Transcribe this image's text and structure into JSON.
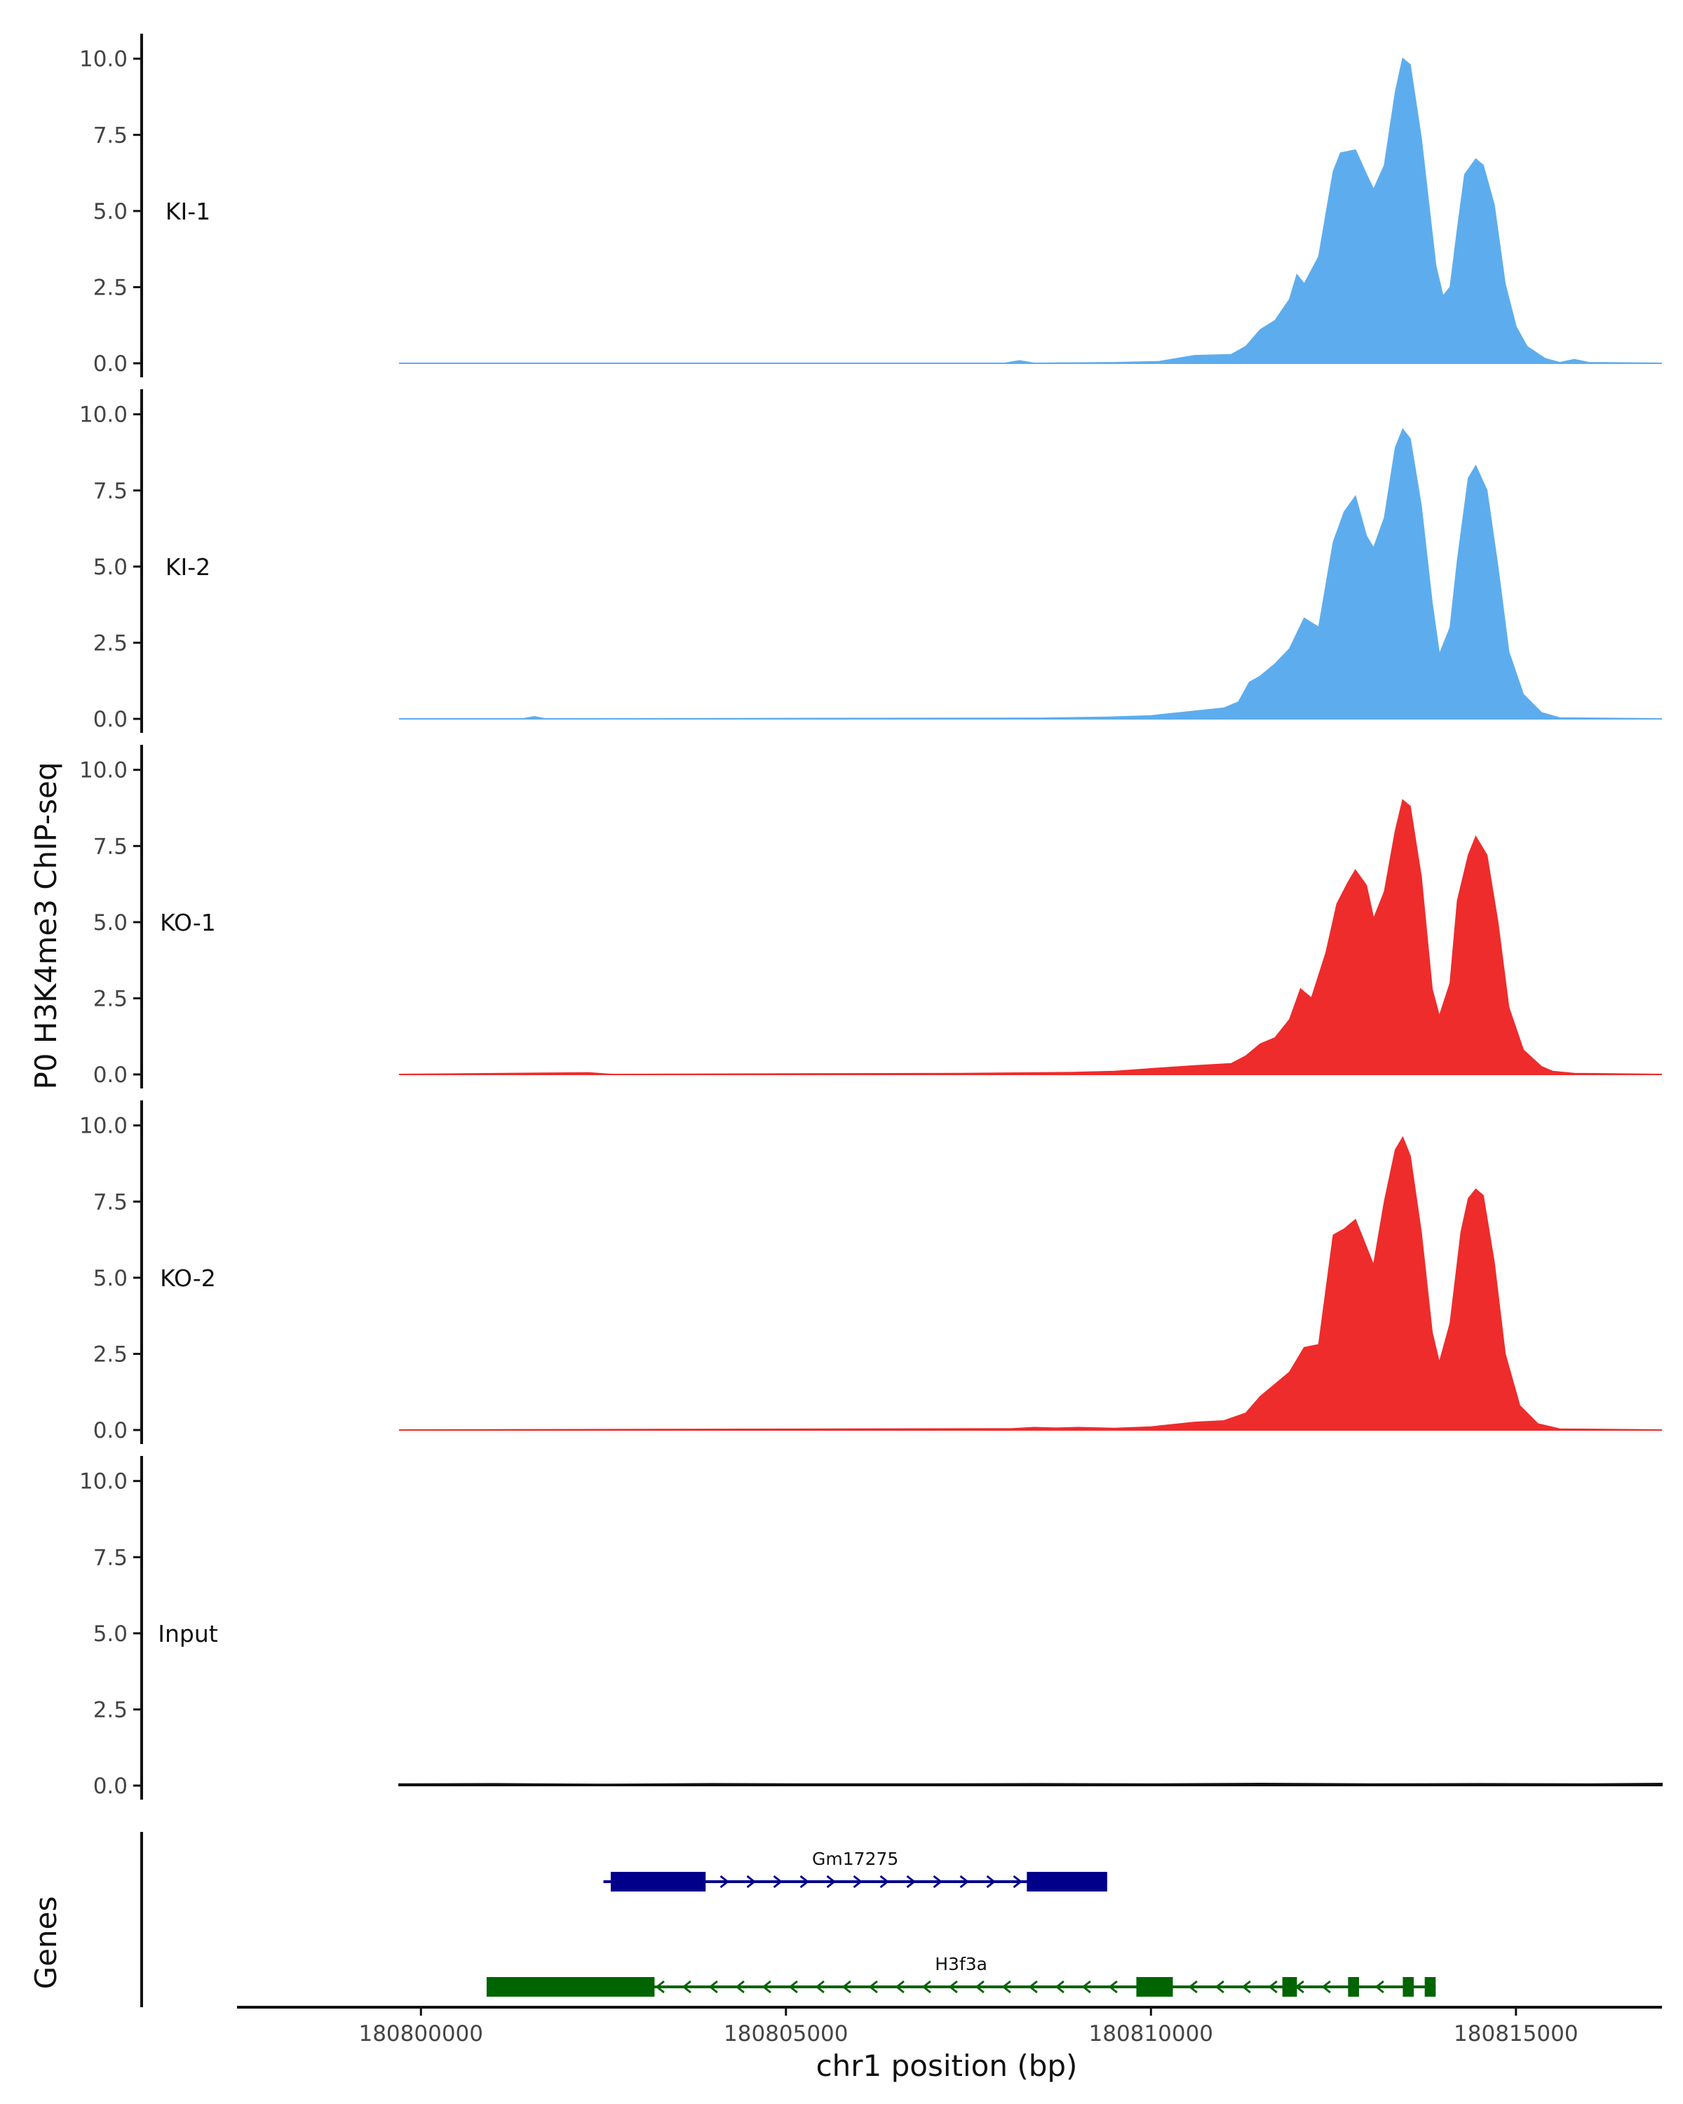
{
  "chart_data": {
    "type": "area",
    "ylabel": "P0 H3K4me3 ChIP-seq",
    "xlabel": "chr1 position (bp)",
    "genes_label": "Genes",
    "xlim": [
      180797500,
      180817000
    ],
    "ylim": [
      0,
      10.5
    ],
    "y_ticks": [
      0,
      2.5,
      5,
      7.5,
      10
    ],
    "y_tick_labels": [
      "0.0",
      "2.5",
      "5.0",
      "7.5",
      "10.0"
    ],
    "x_ticks": [
      180800000,
      180805000,
      180810000,
      180815000
    ],
    "x_tick_labels": [
      "180800000",
      "180805000",
      "180810000",
      "180815000"
    ],
    "grid": false,
    "legend": "none",
    "tracks": [
      {
        "name": "KI-1",
        "color": "#5DADEE",
        "points": [
          [
            180799700,
            0.0
          ],
          [
            180808000,
            0.0
          ],
          [
            180808200,
            0.08
          ],
          [
            180808400,
            0.0
          ],
          [
            180809500,
            0.02
          ],
          [
            180810100,
            0.05
          ],
          [
            180810600,
            0.25
          ],
          [
            180811100,
            0.28
          ],
          [
            180811300,
            0.55
          ],
          [
            180811500,
            1.1
          ],
          [
            180811700,
            1.4
          ],
          [
            180811900,
            2.1
          ],
          [
            180812000,
            2.9
          ],
          [
            180812100,
            2.6
          ],
          [
            180812300,
            3.5
          ],
          [
            180812500,
            6.3
          ],
          [
            180812600,
            6.9
          ],
          [
            180812800,
            7.0
          ],
          [
            180812950,
            6.2
          ],
          [
            180813050,
            5.7
          ],
          [
            180813200,
            6.5
          ],
          [
            180813350,
            8.9
          ],
          [
            180813450,
            10.0
          ],
          [
            180813550,
            9.8
          ],
          [
            180813700,
            7.4
          ],
          [
            180813900,
            3.2
          ],
          [
            180814000,
            2.2
          ],
          [
            180814100,
            2.5
          ],
          [
            180814200,
            4.4
          ],
          [
            180814300,
            6.2
          ],
          [
            180814450,
            6.7
          ],
          [
            180814550,
            6.5
          ],
          [
            180814700,
            5.2
          ],
          [
            180814850,
            2.6
          ],
          [
            180815000,
            1.2
          ],
          [
            180815150,
            0.55
          ],
          [
            180815400,
            0.15
          ],
          [
            180815600,
            0.02
          ],
          [
            180815800,
            0.12
          ],
          [
            180816000,
            0.02
          ],
          [
            180817000,
            0.0
          ]
        ]
      },
      {
        "name": "KI-2",
        "color": "#5DADEE",
        "points": [
          [
            180799700,
            0.0
          ],
          [
            180801400,
            0.0
          ],
          [
            180801550,
            0.07
          ],
          [
            180801700,
            0.0
          ],
          [
            180808500,
            0.02
          ],
          [
            180809400,
            0.05
          ],
          [
            180810000,
            0.1
          ],
          [
            180810600,
            0.25
          ],
          [
            180811000,
            0.35
          ],
          [
            180811200,
            0.55
          ],
          [
            180811350,
            1.2
          ],
          [
            180811500,
            1.4
          ],
          [
            180811700,
            1.8
          ],
          [
            180811900,
            2.3
          ],
          [
            180812100,
            3.3
          ],
          [
            180812300,
            3.0
          ],
          [
            180812500,
            5.8
          ],
          [
            180812650,
            6.8
          ],
          [
            180812800,
            7.3
          ],
          [
            180812950,
            6.0
          ],
          [
            180813050,
            5.6
          ],
          [
            180813200,
            6.6
          ],
          [
            180813350,
            8.9
          ],
          [
            180813450,
            9.5
          ],
          [
            180813550,
            9.2
          ],
          [
            180813700,
            7.0
          ],
          [
            180813850,
            3.8
          ],
          [
            180813950,
            2.1
          ],
          [
            180814100,
            3.0
          ],
          [
            180814200,
            5.2
          ],
          [
            180814350,
            7.9
          ],
          [
            180814450,
            8.3
          ],
          [
            180814600,
            7.5
          ],
          [
            180814750,
            5.0
          ],
          [
            180814900,
            2.2
          ],
          [
            180815100,
            0.8
          ],
          [
            180815350,
            0.2
          ],
          [
            180815600,
            0.03
          ],
          [
            180817000,
            0.0
          ]
        ]
      },
      {
        "name": "KO-1",
        "color": "#EE2C2C",
        "points": [
          [
            180799700,
            0.0
          ],
          [
            180802300,
            0.05
          ],
          [
            180802600,
            0.0
          ],
          [
            180807400,
            0.03
          ],
          [
            180808900,
            0.06
          ],
          [
            180809500,
            0.1
          ],
          [
            180810100,
            0.2
          ],
          [
            180810600,
            0.28
          ],
          [
            180811100,
            0.35
          ],
          [
            180811300,
            0.6
          ],
          [
            180811500,
            1.0
          ],
          [
            180811700,
            1.2
          ],
          [
            180811900,
            1.8
          ],
          [
            180812050,
            2.8
          ],
          [
            180812200,
            2.5
          ],
          [
            180812400,
            4.0
          ],
          [
            180812550,
            5.6
          ],
          [
            180812700,
            6.3
          ],
          [
            180812800,
            6.7
          ],
          [
            180812950,
            6.2
          ],
          [
            180813050,
            5.1
          ],
          [
            180813200,
            6.0
          ],
          [
            180813350,
            8.0
          ],
          [
            180813450,
            9.0
          ],
          [
            180813550,
            8.8
          ],
          [
            180813700,
            6.5
          ],
          [
            180813850,
            2.8
          ],
          [
            180813950,
            1.9
          ],
          [
            180814100,
            3.0
          ],
          [
            180814200,
            5.7
          ],
          [
            180814350,
            7.2
          ],
          [
            180814450,
            7.8
          ],
          [
            180814600,
            7.2
          ],
          [
            180814750,
            5.0
          ],
          [
            180814900,
            2.2
          ],
          [
            180815100,
            0.8
          ],
          [
            180815350,
            0.25
          ],
          [
            180815500,
            0.1
          ],
          [
            180815800,
            0.03
          ],
          [
            180817000,
            0.0
          ]
        ]
      },
      {
        "name": "KO-2",
        "color": "#EE2C2C",
        "points": [
          [
            180799700,
            0.0
          ],
          [
            180808100,
            0.04
          ],
          [
            180808400,
            0.08
          ],
          [
            180808700,
            0.06
          ],
          [
            180809000,
            0.08
          ],
          [
            180809500,
            0.05
          ],
          [
            180810000,
            0.1
          ],
          [
            180810600,
            0.25
          ],
          [
            180811000,
            0.3
          ],
          [
            180811300,
            0.55
          ],
          [
            180811500,
            1.1
          ],
          [
            180811700,
            1.5
          ],
          [
            180811900,
            1.9
          ],
          [
            180812100,
            2.7
          ],
          [
            180812300,
            2.8
          ],
          [
            180812500,
            6.4
          ],
          [
            180812650,
            6.6
          ],
          [
            180812800,
            6.9
          ],
          [
            180812950,
            6.0
          ],
          [
            180813050,
            5.4
          ],
          [
            180813200,
            7.5
          ],
          [
            180813350,
            9.2
          ],
          [
            180813450,
            9.6
          ],
          [
            180813550,
            9.0
          ],
          [
            180813700,
            6.5
          ],
          [
            180813850,
            3.2
          ],
          [
            180813950,
            2.2
          ],
          [
            180814100,
            3.5
          ],
          [
            180814250,
            6.5
          ],
          [
            180814350,
            7.6
          ],
          [
            180814450,
            7.9
          ],
          [
            180814550,
            7.7
          ],
          [
            180814700,
            5.5
          ],
          [
            180814850,
            2.5
          ],
          [
            180815050,
            0.8
          ],
          [
            180815300,
            0.2
          ],
          [
            180815600,
            0.03
          ],
          [
            180817000,
            0.0
          ]
        ]
      },
      {
        "name": "Input",
        "color": "#111111",
        "points": [
          [
            180799700,
            0.05
          ],
          [
            180801000,
            0.06
          ],
          [
            180802500,
            0.04
          ],
          [
            180804000,
            0.06
          ],
          [
            180805500,
            0.05
          ],
          [
            180807000,
            0.05
          ],
          [
            180808500,
            0.06
          ],
          [
            180810000,
            0.05
          ],
          [
            180811500,
            0.07
          ],
          [
            180813000,
            0.05
          ],
          [
            180814500,
            0.06
          ],
          [
            180816000,
            0.05
          ],
          [
            180817000,
            0.07
          ]
        ]
      }
    ],
    "genes": [
      {
        "name": "Gm17275",
        "strand": "+",
        "color": "#00008B",
        "start": 180802500,
        "end": 180809400,
        "exons": [
          [
            180802600,
            180803900
          ],
          [
            180808300,
            180809400
          ]
        ]
      },
      {
        "name": "H3f3a",
        "strand": "-",
        "color": "#006400",
        "start": 180800900,
        "end": 180813900,
        "exons": [
          [
            180800900,
            180803200
          ],
          [
            180809800,
            180810300
          ],
          [
            180811800,
            180812000
          ],
          [
            180812700,
            180812850
          ],
          [
            180813450,
            180813600
          ],
          [
            180813750,
            180813900
          ]
        ]
      }
    ]
  }
}
